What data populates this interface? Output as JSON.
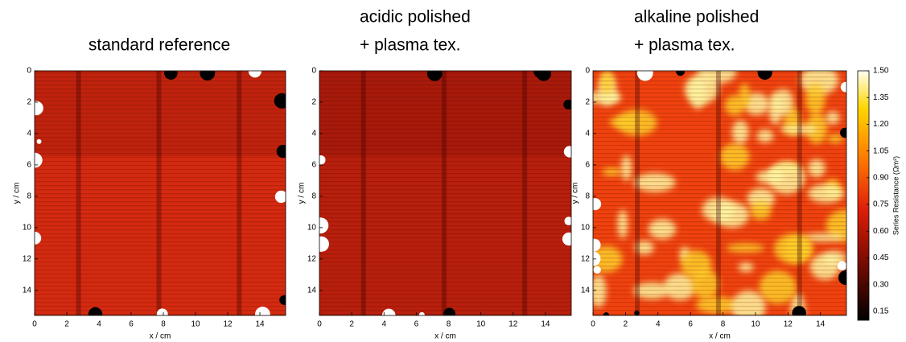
{
  "chart_data": [
    {
      "type": "heatmap",
      "title": [
        "standard reference"
      ],
      "color": "#d42a10",
      "xlabel": "x / cm",
      "ylabel": "y / cm",
      "xlim": [
        0,
        15.6
      ],
      "ylim": [
        15.6,
        0
      ],
      "xticks": [
        0,
        2,
        4,
        6,
        8,
        10,
        12,
        14
      ],
      "yticks": [
        0,
        2,
        4,
        6,
        8,
        10,
        12,
        14
      ]
    },
    {
      "type": "heatmap",
      "title": [
        "acidic polished",
        "+ plasma tex."
      ],
      "color": "#b81f0c",
      "xlabel": "x / cm",
      "ylabel": "y / cm",
      "xlim": [
        0,
        15.6
      ],
      "ylim": [
        15.6,
        0
      ],
      "xticks": [
        0,
        2,
        4,
        6,
        8,
        10,
        12,
        14
      ],
      "yticks": [
        0,
        2,
        4,
        6,
        8,
        10,
        12,
        14
      ]
    },
    {
      "type": "heatmap",
      "title": [
        "alkaline polished",
        "+ plasma tex."
      ],
      "color": "#f0420e",
      "xlabel": "x / cm",
      "ylabel": "y / cm",
      "xlim": [
        0,
        15.6
      ],
      "ylim": [
        15.6,
        0
      ],
      "xticks": [
        0,
        2,
        4,
        6,
        8,
        10,
        12,
        14
      ],
      "yticks": [
        0,
        2,
        4,
        6,
        8,
        10,
        12,
        14
      ],
      "colorbar": {
        "label": "Series Resistance (Ωm²)",
        "lim": [
          0.1,
          1.5
        ],
        "ticks": [
          0.15,
          {
            "value": 0.3,
            "label": "0.30"
          },
          0.45,
          {
            "value": 0.6,
            "label": "0.60"
          },
          0.75,
          {
            "value": 0.9,
            "label": "0.90"
          },
          1.05,
          {
            "value": 1.2,
            "label": "1.20"
          },
          1.35,
          {
            "value": 1.5,
            "label": "1.50"
          }
        ]
      }
    }
  ]
}
